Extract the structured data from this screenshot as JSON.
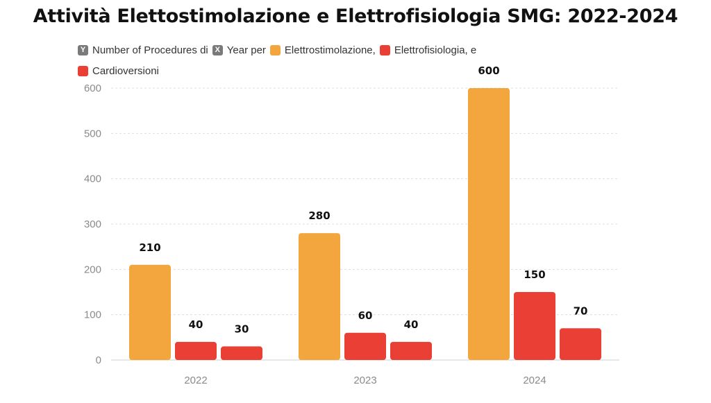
{
  "title": "Attività Elettostimolazione e Elettrofisiologia SMG: 2022-2024",
  "legend": {
    "items": [
      {
        "label": "Number of Procedures di",
        "glyph": "Y",
        "color": "#7a7a7a"
      },
      {
        "label": "Year per",
        "glyph": "X",
        "color": "#7a7a7a"
      },
      {
        "label": "Elettrostimolazione,",
        "glyph": "",
        "color": "#F4A63E"
      },
      {
        "label": "Elettrofisiologia, e",
        "glyph": "",
        "color": "#EA3F35"
      },
      {
        "label": "Cardioversioni",
        "glyph": "",
        "color": "#EA3F35"
      }
    ]
  },
  "chart_data": {
    "type": "bar",
    "title": "Attività Elettostimolazione e Elettrofisiologia SMG: 2022-2024",
    "xlabel": "",
    "ylabel": "",
    "categories": [
      "2022",
      "2023",
      "2024"
    ],
    "series": [
      {
        "name": "Elettrostimolazione",
        "values": [
          210,
          280,
          600
        ],
        "color": "#F4A63E"
      },
      {
        "name": "Elettrofisiologia",
        "values": [
          40,
          60,
          150
        ],
        "color": "#EA3F35"
      },
      {
        "name": "Cardioversioni",
        "values": [
          30,
          40,
          70
        ],
        "color": "#EA3F35"
      }
    ],
    "ylim": [
      0,
      600
    ],
    "yticks": [
      "0",
      "100",
      "200",
      "300",
      "400",
      "500",
      "600"
    ],
    "grid": true,
    "legend_position": "top-left"
  }
}
